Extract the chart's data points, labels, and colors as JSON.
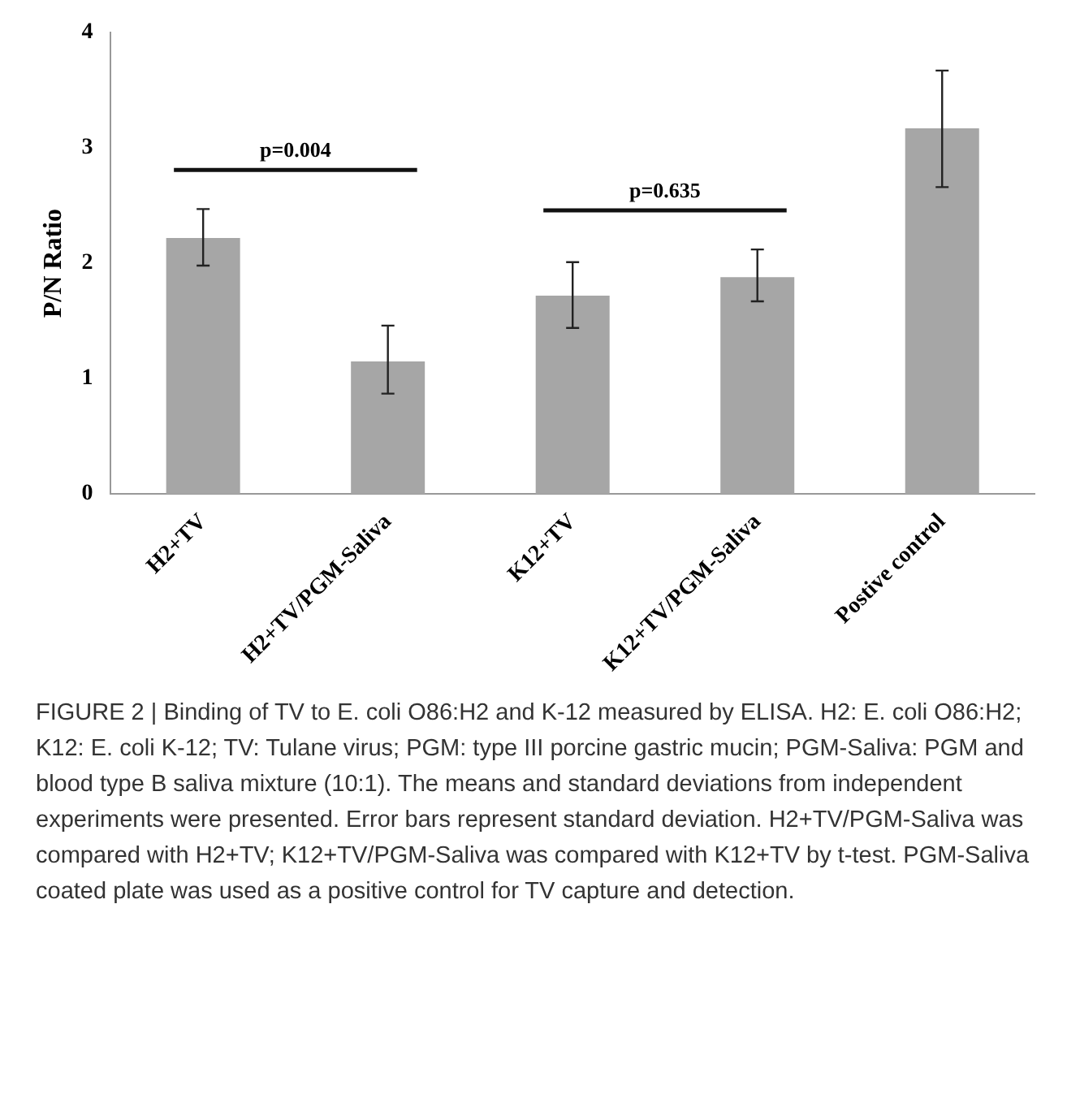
{
  "chart_data": {
    "type": "bar",
    "categories": [
      "H2+TV",
      "H2+TV/PGM-Saliva",
      "K12+TV",
      "K12+TV/PGM-Saliva",
      "Postive control"
    ],
    "values": [
      2.22,
      1.15,
      1.72,
      1.88,
      3.17
    ],
    "errors": [
      [
        1.98,
        2.47
      ],
      [
        0.87,
        1.46
      ],
      [
        1.44,
        2.01
      ],
      [
        1.67,
        2.12
      ],
      [
        2.66,
        3.67
      ]
    ],
    "color": "#a6a6a6",
    "ylabel": "P/N Ratio",
    "ylim": [
      0,
      4
    ],
    "yticks": [
      0,
      1,
      2,
      3,
      4
    ],
    "grid": false,
    "legend": false,
    "annotations": [
      "p=0.004",
      "p=0.635",
      "FIGURE 2 | Binding of TV to E. coli O86:H2 and K-12 measured by ELISA. H2: E. coli O86:H2; K12: E. coli K-12; TV: Tulane virus; PGM: type III porcine gastric mucin; PGM-Saliva: PGM and blood type B saliva mixture (10:1). The means and standard deviations from independent experiments were presented. Error bars represent standard deviation. H2+TV/PGM-Saliva was compared with H2+TV; K12+TV/PGM-Saliva was compared with K12+TV by t-test. PGM-Saliva coated plate was used as a positive control for TV capture and detection."
    ]
  }
}
